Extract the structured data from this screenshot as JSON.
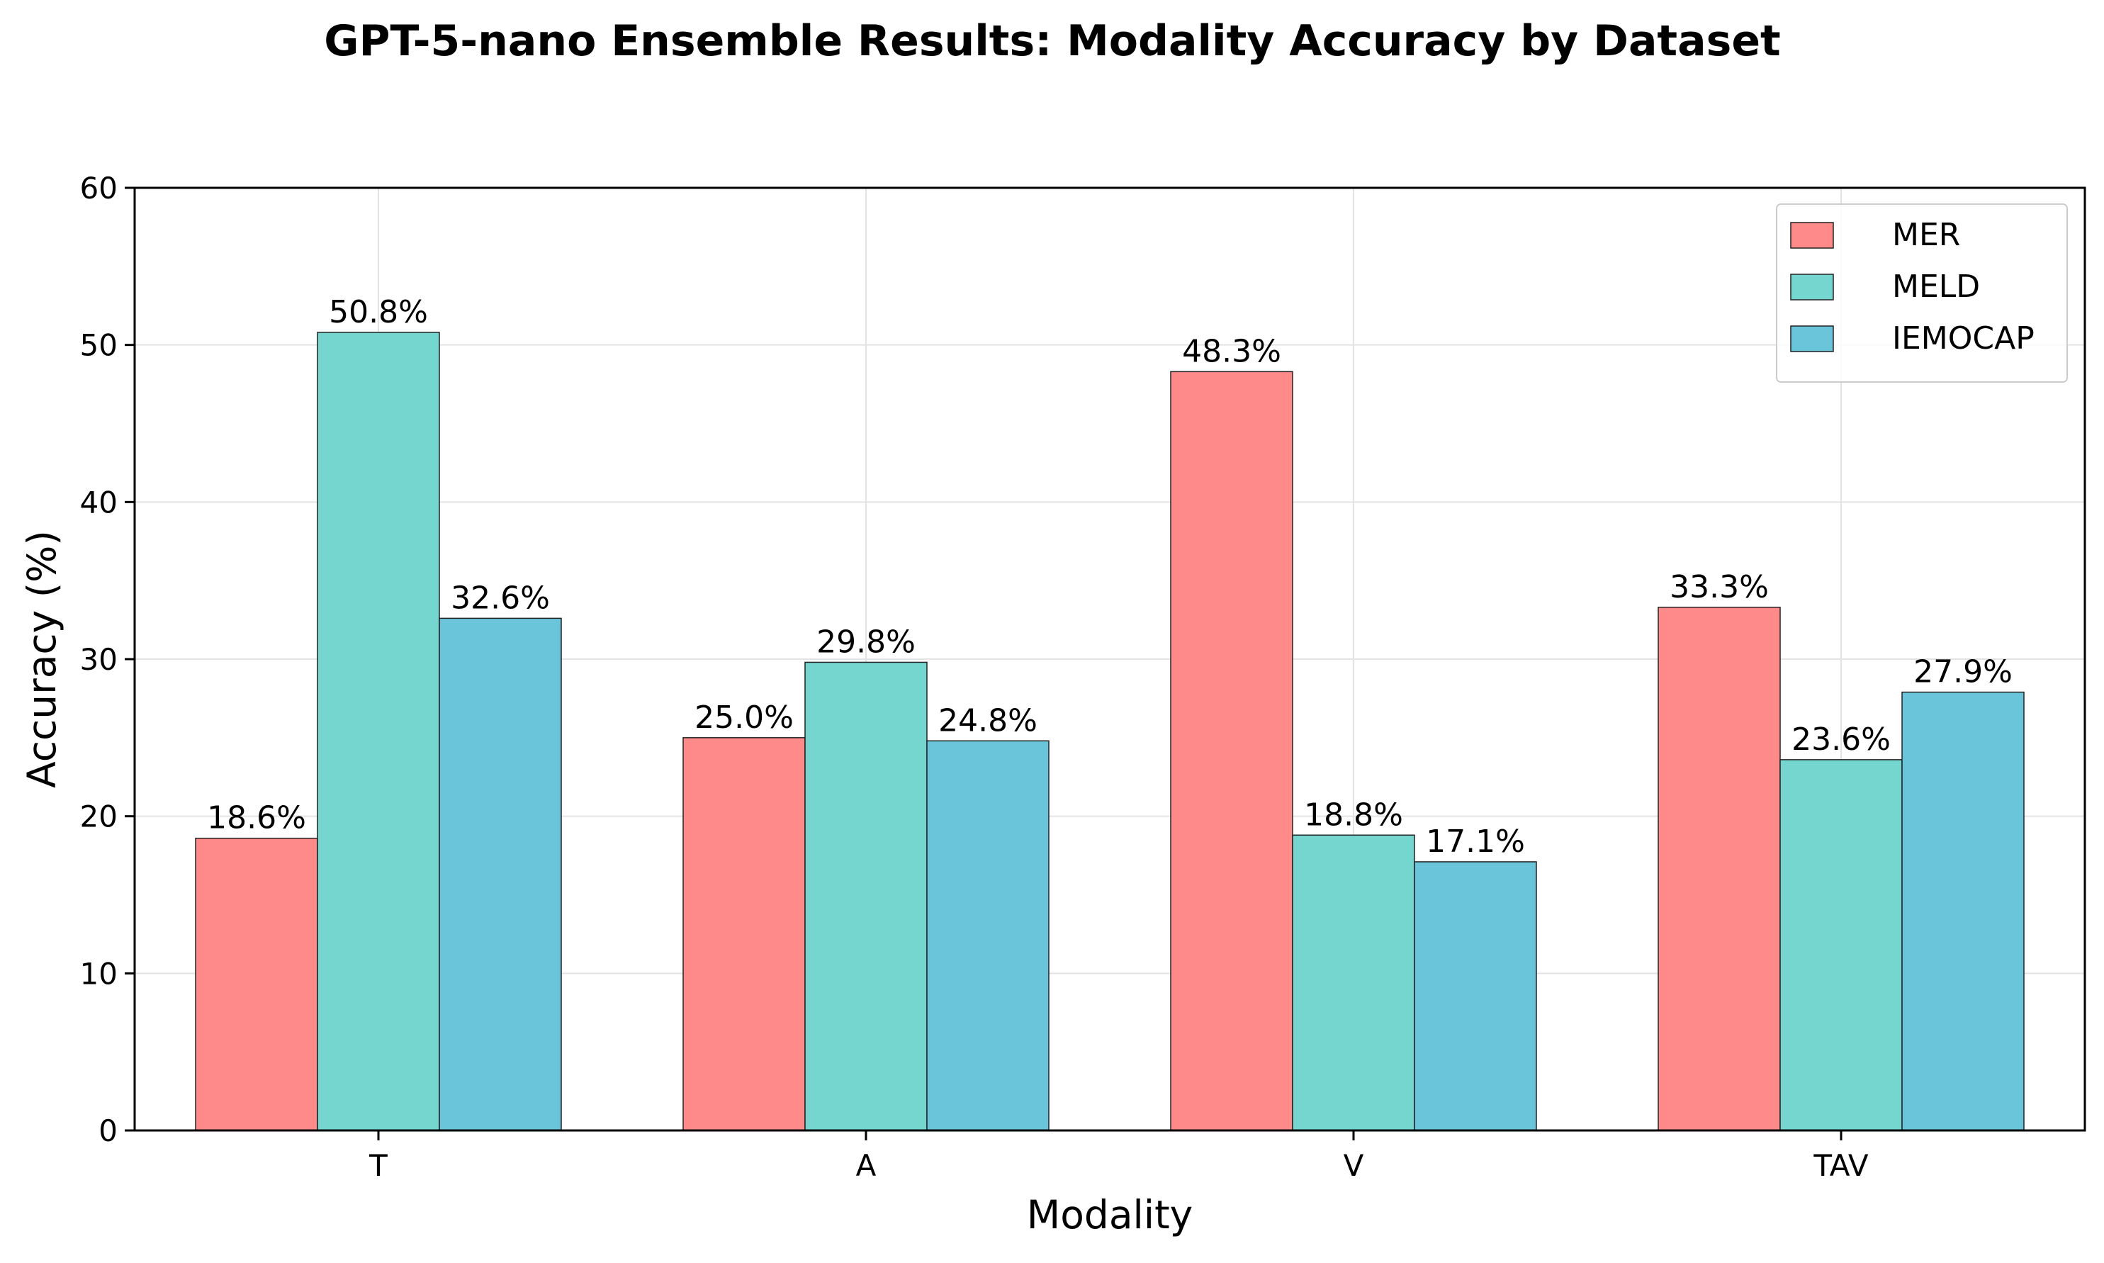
{
  "chart_data": {
    "type": "bar",
    "title": "GPT-5-nano Ensemble Results: Modality Accuracy by Dataset",
    "xlabel": "Modality",
    "ylabel": "Accuracy (%)",
    "categories": [
      "T",
      "A",
      "V",
      "TAV"
    ],
    "series": [
      {
        "name": "MER",
        "color": "#ff8a8a",
        "values": [
          18.6,
          25.0,
          48.3,
          33.3
        ],
        "labels": [
          "18.6%",
          "25.0%",
          "48.3%",
          "33.3%"
        ]
      },
      {
        "name": "MELD",
        "color": "#74d6cf",
        "values": [
          50.8,
          29.8,
          18.8,
          23.6
        ],
        "labels": [
          "50.8%",
          "29.8%",
          "18.8%",
          "23.6%"
        ]
      },
      {
        "name": "IEMOCAP",
        "color": "#6ac4da",
        "values": [
          32.6,
          24.8,
          17.1,
          27.9
        ],
        "labels": [
          "32.6%",
          "24.8%",
          "17.1%",
          "27.9%"
        ]
      }
    ],
    "ylim": [
      0,
      60
    ],
    "yticks": [
      0,
      10,
      20,
      30,
      40,
      50,
      60
    ],
    "ytick_labels": [
      "0",
      "10",
      "20",
      "30",
      "40",
      "50",
      "60"
    ],
    "grid": true,
    "legend_position": "top-right"
  }
}
